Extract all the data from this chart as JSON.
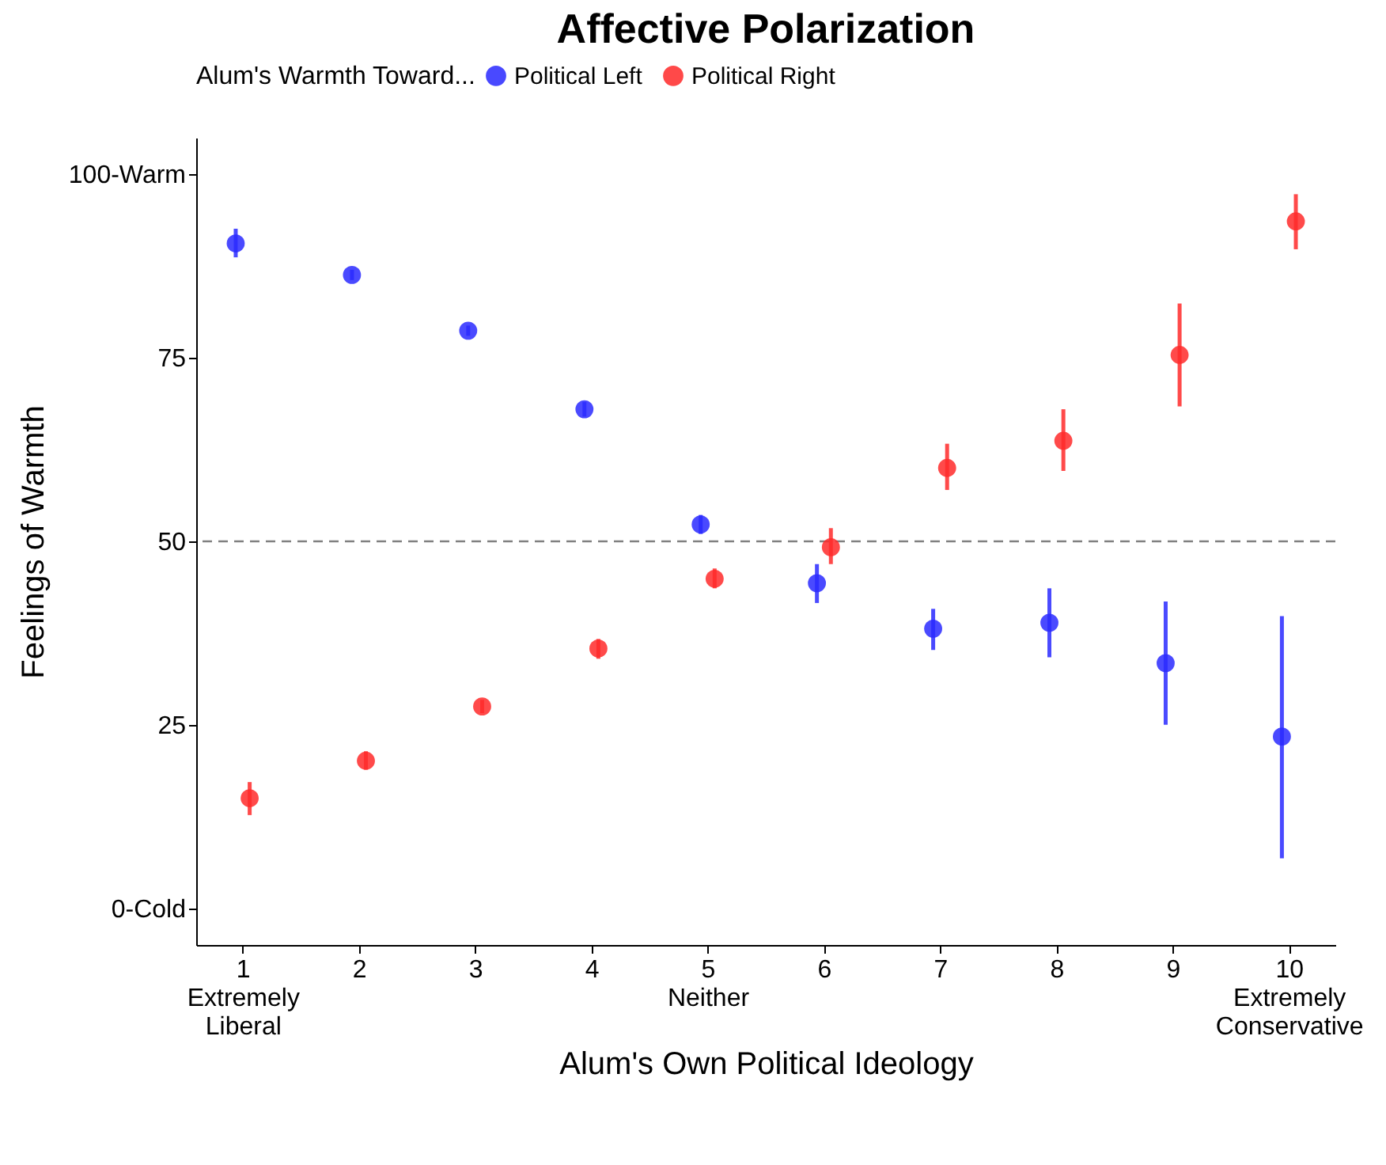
{
  "chart_data": {
    "type": "scatter",
    "title": "Affective Polarization",
    "xlabel": "Alum's Own Political Ideology",
    "ylabel": "Feelings of Warmth",
    "legend_title": "Alum's Warmth Toward...",
    "legend": "top",
    "marker": "circle",
    "grid": false,
    "xlim": [
      0.6,
      10.4
    ],
    "xticks": [
      {
        "value": 1,
        "label": "1\nExtremely\nLiberal"
      },
      2,
      3,
      4,
      {
        "value": 5,
        "label": "5\nNeither"
      },
      6,
      7,
      8,
      9,
      {
        "value": 10,
        "label": "10\nExtremely\nConservative"
      }
    ],
    "ylim": [
      -5,
      105
    ],
    "yticks": [
      {
        "value": 0,
        "label": "0-Cold"
      },
      25,
      50,
      75,
      {
        "value": 100,
        "label": "100-Warm"
      }
    ],
    "ref_lines": [
      {
        "axis": "y",
        "value": 50,
        "color": "#808080",
        "line_style": "dashed"
      }
    ],
    "series": [
      {
        "name": "Political Left",
        "color": "#2a2aff",
        "x": [
          0.94,
          1.94,
          2.94,
          3.94,
          4.94,
          5.94,
          6.94,
          7.94,
          8.94,
          9.94
        ],
        "values": [
          90.6,
          86.3,
          78.7,
          68.0,
          52.3,
          44.3,
          38.1,
          38.9,
          33.4,
          23.4
        ],
        "errors": [
          [
            88.7,
            92.6
          ],
          [
            85.6,
            87.0
          ],
          [
            78.0,
            79.4
          ],
          [
            67.0,
            69.0
          ],
          [
            51.0,
            53.6
          ],
          [
            41.6,
            46.9
          ],
          [
            35.2,
            40.8
          ],
          [
            34.2,
            43.6
          ],
          [
            25.0,
            41.8
          ],
          [
            6.8,
            39.8
          ]
        ]
      },
      {
        "name": "Political Right",
        "color": "#ff2a2a",
        "x": [
          1.06,
          2.06,
          3.06,
          4.06,
          5.06,
          6.06,
          7.06,
          8.06,
          9.06,
          10.06
        ],
        "values": [
          15.0,
          20.1,
          27.5,
          35.4,
          44.9,
          49.2,
          60.0,
          63.7,
          75.4,
          93.6
        ],
        "errors": [
          [
            12.7,
            17.2
          ],
          [
            18.9,
            21.4
          ],
          [
            26.6,
            28.4
          ],
          [
            34.0,
            36.7
          ],
          [
            43.6,
            46.3
          ],
          [
            46.9,
            51.8
          ],
          [
            57.0,
            63.3
          ],
          [
            59.6,
            68.0
          ],
          [
            68.4,
            82.4
          ],
          [
            89.8,
            97.3
          ]
        ]
      }
    ]
  }
}
